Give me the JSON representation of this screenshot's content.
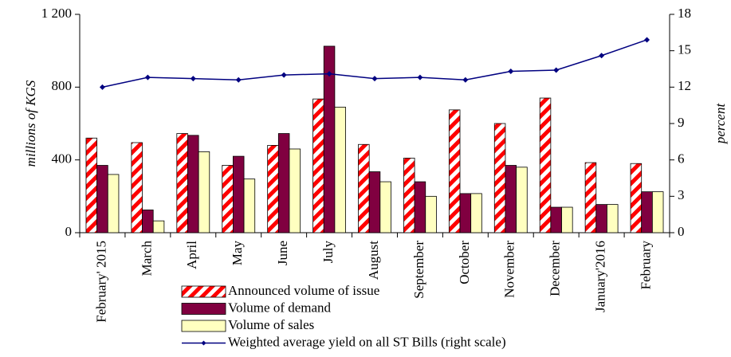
{
  "chart_data": {
    "type": "bar_line",
    "categories": [
      "February' 2015",
      "March",
      "April",
      "May",
      "June",
      "July",
      "August",
      "September",
      "October",
      "November",
      "December",
      "January'2016",
      "February"
    ],
    "series": [
      {
        "name": "Announced volume of issue",
        "color": "#ff0000",
        "pattern": "diagonal-stripes",
        "values": [
          520,
          495,
          545,
          370,
          480,
          735,
          485,
          410,
          675,
          600,
          740,
          385,
          380
        ]
      },
      {
        "name": "Volume of demand",
        "color": "#800040",
        "values": [
          370,
          125,
          535,
          420,
          545,
          1025,
          335,
          280,
          215,
          370,
          140,
          155,
          225
        ]
      },
      {
        "name": "Volume of sales",
        "color": "#ffffc0",
        "values": [
          320,
          65,
          445,
          295,
          460,
          690,
          280,
          200,
          215,
          360,
          140,
          155,
          225
        ]
      },
      {
        "name": "Weighted average yield on all ST Bills (right scale)",
        "color": "#000080",
        "axis": "y2",
        "type": "line",
        "values": [
          12.0,
          12.8,
          12.7,
          12.6,
          13.0,
          13.1,
          12.7,
          12.8,
          12.6,
          13.3,
          13.4,
          14.6,
          15.9
        ]
      }
    ],
    "y_label": "millions of KGS",
    "y2_label": "percent",
    "ylim": [
      0,
      1200
    ],
    "yticks": [
      0,
      400,
      800,
      {
        "value": 1200,
        "label": "1 200"
      }
    ],
    "y2lim": [
      0,
      18
    ],
    "y2ticks": [
      0,
      3,
      6,
      9,
      12,
      15,
      18
    ],
    "grid": false
  }
}
